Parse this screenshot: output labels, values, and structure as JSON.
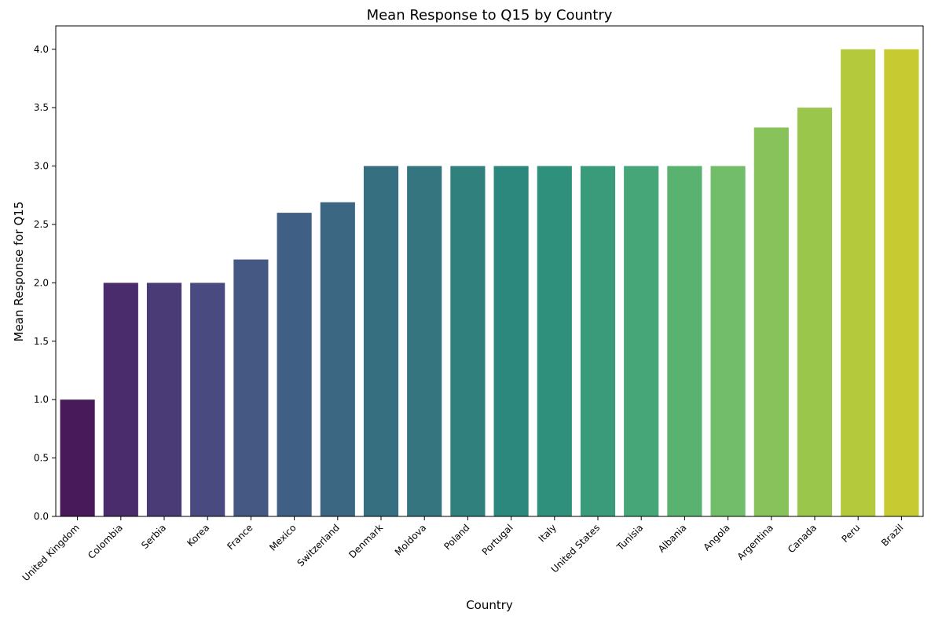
{
  "chart_data": {
    "type": "bar",
    "title": "Mean Response to Q15 by Country",
    "xlabel": "Country",
    "ylabel": "Mean Response for Q15",
    "ylim": [
      0,
      4.2
    ],
    "yticks": [
      "0.0",
      "0.5",
      "1.0",
      "1.5",
      "2.0",
      "2.5",
      "3.0",
      "3.5",
      "4.0"
    ],
    "ytick_values": [
      0,
      0.5,
      1.0,
      1.5,
      2.0,
      2.5,
      3.0,
      3.5,
      4.0
    ],
    "categories": [
      "United Kingdom",
      "Colombia",
      "Serbia",
      "Korea",
      "France",
      "Mexico",
      "Switzerland",
      "Denmark",
      "Moldova",
      "Poland",
      "Portugal",
      "Italy",
      "United States",
      "Tunisia",
      "Albania",
      "Angola",
      "Argentina",
      "Canada",
      "Peru",
      "Brazil"
    ],
    "values": [
      1.0,
      2.0,
      2.0,
      2.0,
      2.2,
      2.6,
      2.69,
      3.0,
      3.0,
      3.0,
      3.0,
      3.0,
      3.0,
      3.0,
      3.0,
      3.0,
      3.33,
      3.5,
      4.0,
      4.0
    ],
    "colors": [
      "#481a5a",
      "#4a2b6b",
      "#4a3b77",
      "#484a80",
      "#455783",
      "#405f85",
      "#3b6782",
      "#356f80",
      "#35757f",
      "#30817e",
      "#2c887d",
      "#2f917b",
      "#399b79",
      "#47a677",
      "#5ab270",
      "#72bd69",
      "#88c25a",
      "#9bc64c",
      "#b4c93c",
      "#c7ca31"
    ],
    "grid": false,
    "legend": "none"
  }
}
